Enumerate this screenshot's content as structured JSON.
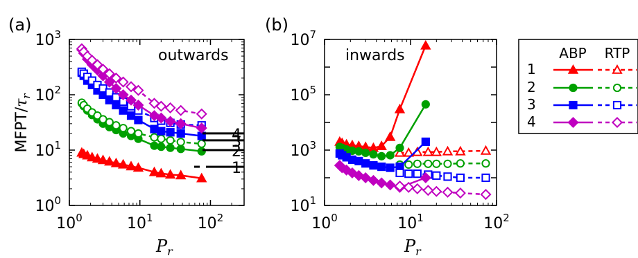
{
  "panels": [
    {
      "panel_label": "(a)",
      "annotation": "outwards",
      "ylabel": "MFPT/",
      "ylabel_symbol": "τ",
      "ylabel_sub": "r",
      "xlabel": "P",
      "xlabel_sub": "r",
      "xticks": [
        {
          "base": "10",
          "exp": "0"
        },
        {
          "base": "10",
          "exp": "1"
        },
        {
          "base": "10",
          "exp": "2"
        }
      ],
      "yticks": [
        {
          "base": "10",
          "exp": "0"
        },
        {
          "base": "10",
          "exp": "1"
        },
        {
          "base": "10",
          "exp": "2"
        },
        {
          "base": "10",
          "exp": "3"
        }
      ],
      "right_labels": [
        "4",
        "3",
        "2",
        "1"
      ]
    },
    {
      "panel_label": "(b)",
      "annotation": "inwards",
      "xlabel": "P",
      "xlabel_sub": "r",
      "xticks": [
        {
          "base": "10",
          "exp": "0"
        },
        {
          "base": "10",
          "exp": "1"
        },
        {
          "base": "10",
          "exp": "2"
        }
      ],
      "yticks": [
        {
          "base": "10",
          "exp": "1"
        },
        {
          "base": "10",
          "exp": "3"
        },
        {
          "base": "10",
          "exp": "5"
        },
        {
          "base": "10",
          "exp": "7"
        }
      ]
    }
  ],
  "legend": {
    "headers": [
      "ABP",
      "RTP"
    ],
    "rows": [
      "1",
      "2",
      "3",
      "4"
    ]
  },
  "chart_data": [
    {
      "type": "line",
      "panel": "(a)",
      "x_scale": "log",
      "y_scale": "log",
      "xlim": [
        1,
        300
      ],
      "ylim": [
        1,
        1000
      ],
      "colors": {
        "1": "#ff0000",
        "2": "#00a000",
        "3": "#0000ff",
        "4": "#c000c0"
      },
      "markers": {
        "1": "triangle",
        "2": "circle",
        "3": "square",
        "4": "diamond"
      },
      "series": [
        {
          "group": "1",
          "model": "ABP",
          "x": [
            1.5,
            1.6,
            1.8,
            2.1,
            2.5,
            3.0,
            3.7,
            4.6,
            5.8,
            7.5,
            9.5,
            16,
            20,
            27,
            38,
            75
          ],
          "y": [
            9,
            8.5,
            8,
            7.4,
            7,
            6.6,
            6.2,
            5.8,
            5.5,
            5.1,
            4.8,
            4,
            3.8,
            3.6,
            3.5,
            3.1
          ]
        },
        {
          "group": "1",
          "model": "RTP",
          "x": [],
          "y": []
        },
        {
          "group": "2",
          "model": "ABP",
          "x": [
            1.5,
            1.6,
            1.8,
            2.1,
            2.5,
            3.0,
            3.7,
            4.6,
            5.8,
            7.5,
            9.5,
            16,
            20,
            27,
            38,
            75
          ],
          "y": [
            70,
            62,
            52,
            43,
            36,
            30,
            26,
            23,
            20,
            18,
            16,
            12,
            11.5,
            11,
            10.5,
            9.5
          ]
        },
        {
          "group": "2",
          "model": "RTP",
          "x": [
            1.5,
            1.6,
            1.8,
            2.1,
            2.5,
            3.0,
            3.7,
            4.6,
            5.8,
            7.5,
            9.5,
            16,
            20,
            27,
            38,
            75
          ],
          "y": [
            72,
            65,
            56,
            48,
            42,
            36,
            32,
            28,
            25,
            22,
            20,
            17,
            16,
            15,
            14,
            13
          ]
        },
        {
          "group": "3",
          "model": "ABP",
          "x": [
            1.5,
            1.6,
            1.8,
            2.1,
            2.5,
            3.0,
            3.7,
            4.6,
            5.8,
            7.5,
            9.5,
            16,
            20,
            27,
            38,
            75
          ],
          "y": [
            250,
            220,
            180,
            150,
            120,
            100,
            80,
            65,
            52,
            42,
            35,
            24,
            22,
            21,
            20,
            18
          ]
        },
        {
          "group": "3",
          "model": "RTP",
          "x": [
            1.5,
            1.6,
            1.8,
            2.1,
            2.5,
            3.0,
            3.7,
            4.6,
            5.8,
            7.5,
            9.5,
            16,
            20,
            27,
            38,
            75
          ],
          "y": [
            260,
            240,
            210,
            180,
            150,
            130,
            110,
            90,
            75,
            62,
            52,
            38,
            34,
            31,
            29,
            28
          ]
        },
        {
          "group": "4",
          "model": "ABP",
          "x": [
            1.5,
            1.6,
            1.8,
            2.1,
            2.5,
            3.0,
            3.7,
            4.6,
            5.8,
            7.5,
            9.5,
            16,
            20,
            27,
            38,
            75
          ],
          "y": [
            650,
            560,
            440,
            350,
            280,
            220,
            170,
            130,
            100,
            80,
            65,
            42,
            38,
            33,
            30,
            25
          ]
        },
        {
          "group": "4",
          "model": "RTP",
          "x": [
            1.5,
            1.6,
            1.8,
            2.1,
            2.5,
            3.0,
            3.7,
            4.6,
            5.8,
            7.5,
            9.5,
            16,
            20,
            27,
            38,
            75
          ],
          "y": [
            680,
            600,
            500,
            420,
            350,
            290,
            240,
            200,
            170,
            140,
            120,
            70,
            62,
            58,
            52,
            45
          ]
        }
      ],
      "reference_levels": [
        {
          "label": "4",
          "y": 20
        },
        {
          "label": "3",
          "y": 15
        },
        {
          "label": "2",
          "y": 10
        },
        {
          "label": "1",
          "y": 5
        }
      ]
    },
    {
      "type": "line",
      "panel": "(b)",
      "x_scale": "log",
      "y_scale": "log",
      "xlim": [
        1,
        100
      ],
      "ylim": [
        10,
        10000000
      ],
      "colors": {
        "1": "#ff0000",
        "2": "#00a000",
        "3": "#0000ff",
        "4": "#c000c0"
      },
      "markers": {
        "1": "triangle",
        "2": "circle",
        "3": "square",
        "4": "diamond"
      },
      "series": [
        {
          "group": "1",
          "model": "ABP",
          "x": [
            1.5,
            1.6,
            1.8,
            2.1,
            2.5,
            3.0,
            3.7,
            4.6,
            5.8,
            7.5,
            15
          ],
          "y": [
            2000,
            1800,
            1600,
            1500,
            1400,
            1300,
            1200,
            1400,
            3000,
            30000,
            6000000
          ]
        },
        {
          "group": "1",
          "model": "RTP",
          "x": [
            7.5,
            9.5,
            12,
            16,
            20,
            27,
            38,
            75
          ],
          "y": [
            800,
            800,
            850,
            850,
            850,
            900,
            900,
            950
          ]
        },
        {
          "group": "2",
          "model": "ABP",
          "x": [
            1.5,
            1.6,
            1.8,
            2.1,
            2.5,
            3.0,
            3.7,
            4.6,
            5.8,
            7.5,
            15
          ],
          "y": [
            1300,
            1200,
            1050,
            950,
            900,
            800,
            700,
            600,
            650,
            1200,
            45000
          ]
        },
        {
          "group": "2",
          "model": "RTP",
          "x": [
            7.5,
            9.5,
            12,
            16,
            20,
            27,
            38,
            75
          ],
          "y": [
            300,
            300,
            320,
            320,
            320,
            320,
            330,
            330
          ]
        },
        {
          "group": "3",
          "model": "ABP",
          "x": [
            1.5,
            1.6,
            1.8,
            2.1,
            2.5,
            3.0,
            3.7,
            4.6,
            5.8,
            7.5,
            15
          ],
          "y": [
            750,
            650,
            550,
            450,
            400,
            330,
            280,
            250,
            230,
            250,
            2000
          ]
        },
        {
          "group": "3",
          "model": "RTP",
          "x": [
            7.5,
            9.5,
            12,
            16,
            20,
            27,
            38,
            75
          ],
          "y": [
            150,
            140,
            140,
            130,
            120,
            110,
            100,
            100
          ]
        },
        {
          "group": "4",
          "model": "ABP",
          "x": [
            1.5,
            1.6,
            1.8,
            2.1,
            2.5,
            3.0,
            3.7,
            4.6,
            5.8,
            7.5,
            15
          ],
          "y": [
            280,
            230,
            190,
            150,
            120,
            100,
            80,
            65,
            55,
            45,
            100
          ]
        },
        {
          "group": "4",
          "model": "RTP",
          "x": [
            7.5,
            9.5,
            12,
            16,
            20,
            27,
            38,
            75
          ],
          "y": [
            50,
            45,
            40,
            35,
            32,
            30,
            28,
            25
          ]
        }
      ]
    }
  ]
}
